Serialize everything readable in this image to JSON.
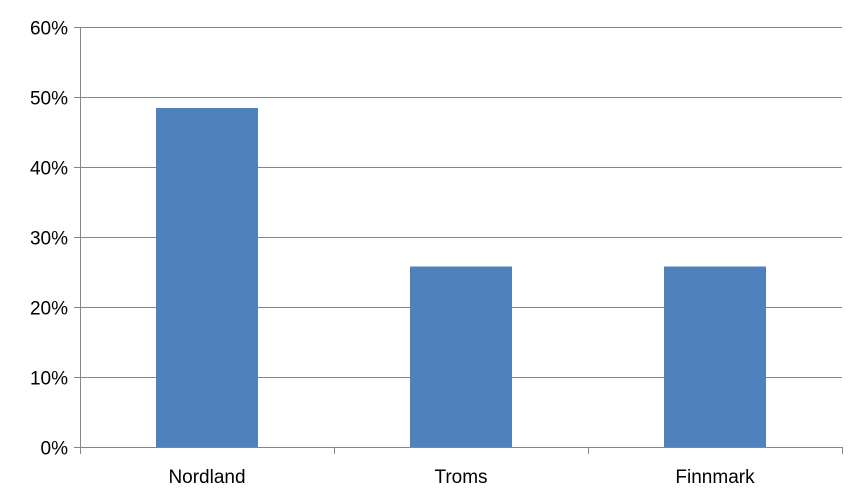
{
  "chart_data": {
    "type": "bar",
    "title": "",
    "xlabel": "",
    "ylabel": "",
    "categories": [
      "Nordland",
      "Troms",
      "Finnmark"
    ],
    "values": [
      0.484,
      0.258,
      0.258
    ],
    "ylim": [
      0,
      0.6
    ],
    "yticks": [
      0,
      0.1,
      0.2,
      0.3,
      0.4,
      0.5,
      0.6
    ],
    "ytick_labels": [
      "0%",
      "10%",
      "20%",
      "30%",
      "40%",
      "50%",
      "60%"
    ],
    "grid": true,
    "legend": "none",
    "bar_color": "#4F81BD"
  }
}
